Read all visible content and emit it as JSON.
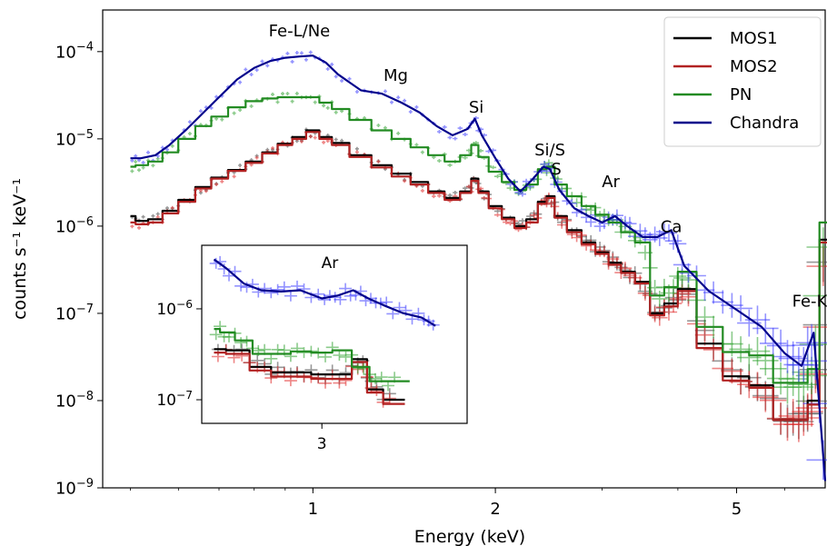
{
  "chart_data": [
    {
      "type": "line",
      "xlabel": "Energy (keV)",
      "ylabel": "counts s⁻¹ keV⁻¹",
      "x_scale": "log",
      "y_scale": "log",
      "xlim": [
        0.45,
        7.0
      ],
      "ylim": [
        1e-09,
        0.0003
      ],
      "x_ticks": [
        1,
        2,
        5
      ],
      "x_tick_labels": [
        "1",
        "2",
        "5"
      ],
      "y_ticks": [
        1e-09,
        1e-08,
        1e-07,
        1e-06,
        1e-05,
        0.0001
      ],
      "y_tick_labels": [
        {
          "base": "10",
          "exp": "−9"
        },
        {
          "base": "10",
          "exp": "−8"
        },
        {
          "base": "10",
          "exp": "−7"
        },
        {
          "base": "10",
          "exp": "−6"
        },
        {
          "base": "10",
          "exp": "−5"
        },
        {
          "base": "10",
          "exp": "−4"
        }
      ],
      "legend_position": "top-right",
      "series": [
        {
          "name": "MOS1",
          "color": "#000000",
          "data_color": "#444444",
          "x": [
            0.5,
            0.52,
            0.55,
            0.58,
            0.62,
            0.66,
            0.7,
            0.75,
            0.8,
            0.85,
            0.9,
            0.95,
            1.0,
            1.05,
            1.1,
            1.2,
            1.3,
            1.4,
            1.5,
            1.6,
            1.7,
            1.8,
            1.85,
            1.9,
            2.0,
            2.1,
            2.2,
            2.3,
            2.4,
            2.46,
            2.55,
            2.7,
            2.85,
            3.0,
            3.15,
            3.3,
            3.5,
            3.7,
            3.9,
            4.1,
            4.5,
            5.0,
            5.5,
            6.0,
            6.4,
            6.7,
            7.0
          ],
          "y": [
            1.3e-06,
            1.15e-06,
            1.2e-06,
            1.5e-06,
            2e-06,
            2.8e-06,
            3.6e-06,
            4.4e-06,
            5.5e-06,
            7e-06,
            8.8e-06,
            1.05e-05,
            1.25e-05,
            1.05e-05,
            9e-06,
            6.5e-06,
            5e-06,
            4e-06,
            3.2e-06,
            2.5e-06,
            2.1e-06,
            2.5e-06,
            3.5e-06,
            2.5e-06,
            1.7e-06,
            1.25e-06,
            1e-06,
            1.2e-06,
            1.9e-06,
            2.2e-06,
            1.3e-06,
            9e-07,
            6.5e-07,
            5e-07,
            3.8e-07,
            3e-07,
            2.3e-07,
            1e-07,
            1.3e-07,
            1.9e-07,
            4.5e-08,
            1.9e-08,
            1.5e-08,
            6e-09,
            6e-09,
            1e-08,
            7e-07
          ]
        },
        {
          "name": "MOS2",
          "color": "#b22222",
          "data_color": "#e02020",
          "x": [
            0.5,
            0.52,
            0.55,
            0.58,
            0.62,
            0.66,
            0.7,
            0.75,
            0.8,
            0.85,
            0.9,
            0.95,
            1.0,
            1.05,
            1.1,
            1.2,
            1.3,
            1.4,
            1.5,
            1.6,
            1.7,
            1.8,
            1.85,
            1.9,
            2.0,
            2.1,
            2.2,
            2.3,
            2.4,
            2.46,
            2.55,
            2.7,
            2.85,
            3.0,
            3.15,
            3.3,
            3.5,
            3.7,
            3.9,
            4.1,
            4.5,
            5.0,
            5.5,
            6.0,
            6.4,
            6.7,
            7.0
          ],
          "y": [
            1.1e-06,
            1.05e-06,
            1.1e-06,
            1.4e-06,
            1.9e-06,
            2.7e-06,
            3.5e-06,
            4.3e-06,
            5.3e-06,
            6.8e-06,
            8.5e-06,
            1e-05,
            1.2e-05,
            1e-05,
            8.5e-06,
            6.2e-06,
            4.7e-06,
            3.7e-06,
            3e-06,
            2.4e-06,
            2e-06,
            2.4e-06,
            3.3e-06,
            2.4e-06,
            1.6e-06,
            1.2e-06,
            9.5e-07,
            1.1e-06,
            1.8e-06,
            2.1e-06,
            1.25e-06,
            8.5e-07,
            6.2e-07,
            4.8e-07,
            3.6e-07,
            2.9e-07,
            2.2e-07,
            9.5e-08,
            1.2e-07,
            1.8e-07,
            4e-08,
            1.7e-08,
            1.4e-08,
            6e-09,
            6e-09,
            9e-09,
            6.5e-07
          ]
        },
        {
          "name": "PN",
          "color": "#228b22",
          "data_color": "#2ca02c",
          "x": [
            0.5,
            0.52,
            0.55,
            0.58,
            0.62,
            0.66,
            0.7,
            0.75,
            0.8,
            0.85,
            0.9,
            0.95,
            1.0,
            1.05,
            1.1,
            1.2,
            1.3,
            1.4,
            1.5,
            1.6,
            1.7,
            1.8,
            1.85,
            1.9,
            2.0,
            2.1,
            2.2,
            2.3,
            2.4,
            2.46,
            2.55,
            2.7,
            2.85,
            3.0,
            3.15,
            3.3,
            3.5,
            3.7,
            3.9,
            4.1,
            4.5,
            5.0,
            5.5,
            6.0,
            6.4,
            6.7,
            7.0
          ],
          "y": [
            4.8e-06,
            5e-06,
            5.5e-06,
            7e-06,
            1e-05,
            1.4e-05,
            1.8e-05,
            2.3e-05,
            2.7e-05,
            2.9e-05,
            3e-05,
            3e-05,
            3e-05,
            2.6e-05,
            2.2e-05,
            1.65e-05,
            1.25e-05,
            1e-05,
            8e-06,
            6.5e-06,
            5.5e-06,
            6.5e-06,
            8.5e-06,
            6.2e-06,
            4.2e-06,
            3.2e-06,
            2.6e-06,
            3e-06,
            4.5e-06,
            4.8e-06,
            3e-06,
            2.2e-06,
            1.7e-06,
            1.35e-06,
            1.1e-06,
            8.5e-07,
            6.5e-07,
            1.6e-07,
            2e-07,
            3e-07,
            7e-08,
            3.6e-08,
            3.3e-08,
            1.6e-08,
            1.6e-08,
            2.3e-08,
            1.1e-06
          ]
        },
        {
          "name": "Chandra",
          "color": "#00008b",
          "data_color": "#3b3bff",
          "x": [
            0.5,
            0.52,
            0.55,
            0.58,
            0.62,
            0.66,
            0.7,
            0.75,
            0.8,
            0.85,
            0.9,
            0.95,
            1.0,
            1.05,
            1.1,
            1.2,
            1.3,
            1.4,
            1.5,
            1.6,
            1.7,
            1.8,
            1.85,
            1.9,
            2.0,
            2.1,
            2.2,
            2.3,
            2.4,
            2.46,
            2.55,
            2.7,
            2.85,
            3.0,
            3.15,
            3.3,
            3.5,
            3.7,
            3.9,
            4.1,
            4.5,
            5.0,
            5.5,
            6.0,
            6.4,
            6.7,
            7.0
          ],
          "y": [
            6e-06,
            6e-06,
            6.5e-06,
            8.5e-06,
            1.3e-05,
            2e-05,
            3e-05,
            4.8e-05,
            6.5e-05,
            7.8e-05,
            8.5e-05,
            8.8e-05,
            9e-05,
            7.5e-05,
            5.5e-05,
            3.6e-05,
            3.3e-05,
            2.6e-05,
            2e-05,
            1.4e-05,
            1.1e-05,
            1.3e-05,
            1.7e-05,
            1.1e-05,
            6e-06,
            3.5e-06,
            2.5e-06,
            3.4e-06,
            4.8e-06,
            4.5e-06,
            2.6e-06,
            1.6e-06,
            1.3e-06,
            1.1e-06,
            1.3e-06,
            1e-06,
            7.5e-07,
            7.5e-07,
            9e-07,
            3.5e-07,
            1.8e-07,
            1.1e-07,
            7e-08,
            3.5e-08,
            2.5e-08,
            6e-08,
            1.2e-09
          ]
        }
      ],
      "annotations": [
        {
          "text": "Fe-L/Ne",
          "x": 0.95,
          "y": 0.00015
        },
        {
          "text": "Mg",
          "x": 1.37,
          "y": 4.6e-05
        },
        {
          "text": "Si",
          "x": 1.86,
          "y": 2e-05
        },
        {
          "text": "Si/S",
          "x": 2.46,
          "y": 6.5e-06
        },
        {
          "text": "S",
          "x": 2.52,
          "y": 3.9e-06
        },
        {
          "text": "Ar",
          "x": 3.1,
          "y": 2.8e-06
        },
        {
          "text": "Ca",
          "x": 3.9,
          "y": 8.5e-07
        },
        {
          "text": "Fe-K",
          "x": 6.6,
          "y": 1.2e-07
        }
      ]
    },
    {
      "type": "line",
      "xlabel": "",
      "ylabel": "",
      "x_scale": "log",
      "y_scale": "log",
      "xlim": [
        2.58,
        3.6
      ],
      "ylim": [
        5.5e-08,
        5e-06
      ],
      "x_ticks": [
        3
      ],
      "x_tick_labels": [
        "3"
      ],
      "y_ticks": [
        1e-07,
        1e-06
      ],
      "y_tick_labels": [
        {
          "base": "10",
          "exp": "−7"
        },
        {
          "base": "10",
          "exp": "−6"
        }
      ],
      "series": [
        {
          "name": "MOS1",
          "color": "#000000",
          "data_color": "#444444",
          "x": [
            2.62,
            2.7,
            2.78,
            2.85,
            2.92,
            3.0,
            3.08,
            3.15,
            3.2,
            3.28
          ],
          "y": [
            3.6e-07,
            3.5e-07,
            2.3e-07,
            2e-07,
            2e-07,
            1.9e-07,
            1.9e-07,
            2.8e-07,
            1.3e-07,
            1e-07
          ]
        },
        {
          "name": "MOS2",
          "color": "#b22222",
          "data_color": "#e02020",
          "x": [
            2.62,
            2.7,
            2.78,
            2.85,
            2.92,
            3.0,
            3.08,
            3.15,
            3.2,
            3.28
          ],
          "y": [
            3.3e-07,
            3.2e-07,
            2.1e-07,
            1.8e-07,
            1.8e-07,
            1.7e-07,
            1.7e-07,
            2.6e-07,
            1.2e-07,
            9e-08
          ]
        },
        {
          "name": "PN",
          "color": "#228b22",
          "data_color": "#2ca02c",
          "x": [
            2.62,
            2.66,
            2.72,
            2.78,
            2.85,
            2.92,
            3.0,
            3.08,
            3.15,
            3.22,
            3.3
          ],
          "y": [
            6e-07,
            5.5e-07,
            4.5e-07,
            3.2e-07,
            3.2e-07,
            3.4e-07,
            3.3e-07,
            3.5e-07,
            2.3e-07,
            1.6e-07,
            1.6e-07
          ]
        },
        {
          "name": "Chandra",
          "color": "#00008b",
          "data_color": "#3b3bff",
          "x": [
            2.62,
            2.66,
            2.72,
            2.78,
            2.85,
            2.92,
            3.0,
            3.06,
            3.12,
            3.18,
            3.24,
            3.32,
            3.4,
            3.46
          ],
          "y": [
            3.5e-06,
            2.8e-06,
            1.9e-06,
            1.6e-06,
            1.55e-06,
            1.6e-06,
            1.3e-06,
            1.4e-06,
            1.6e-06,
            1.3e-06,
            1.1e-06,
            9e-07,
            8e-07,
            6.5e-07
          ]
        }
      ],
      "annotations": [
        {
          "text": "Ar",
          "x": 3.03,
          "y": 2.8e-06
        }
      ]
    }
  ]
}
